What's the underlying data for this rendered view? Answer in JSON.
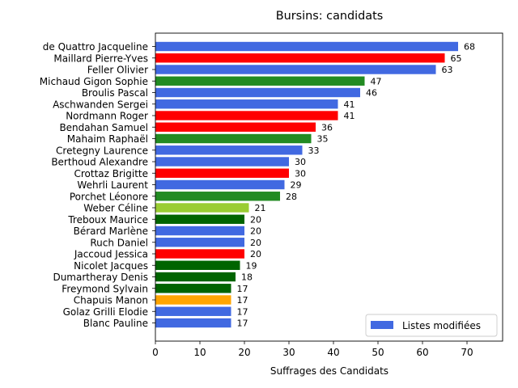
{
  "chart_data": {
    "type": "bar",
    "orientation": "horizontal",
    "title": "Bursins: candidats",
    "xlabel": "Suffrages des Candidats",
    "ylabel": "",
    "xlim": [
      0,
      78
    ],
    "xticks": [
      0,
      10,
      20,
      30,
      40,
      50,
      60,
      70
    ],
    "grid": false,
    "legend": {
      "placement": "bottom-right",
      "entries": [
        {
          "label": "Listes modifiées",
          "color": "#4169e1"
        }
      ]
    },
    "bars": [
      {
        "label": "de Quattro Jacqueline",
        "value": 68,
        "color": "#4169e1"
      },
      {
        "label": "Maillard Pierre-Yves",
        "value": 65,
        "color": "#ff0000"
      },
      {
        "label": "Feller Olivier",
        "value": 63,
        "color": "#4169e1"
      },
      {
        "label": "Michaud Gigon Sophie",
        "value": 47,
        "color": "#228b22"
      },
      {
        "label": "Broulis Pascal",
        "value": 46,
        "color": "#4169e1"
      },
      {
        "label": "Aschwanden Sergei",
        "value": 41,
        "color": "#4169e1"
      },
      {
        "label": "Nordmann Roger",
        "value": 41,
        "color": "#ff0000"
      },
      {
        "label": "Bendahan Samuel",
        "value": 36,
        "color": "#ff0000"
      },
      {
        "label": "Mahaim Raphaël",
        "value": 35,
        "color": "#228b22"
      },
      {
        "label": "Cretegny Laurence",
        "value": 33,
        "color": "#4169e1"
      },
      {
        "label": "Berthoud Alexandre",
        "value": 30,
        "color": "#4169e1"
      },
      {
        "label": "Crottaz Brigitte",
        "value": 30,
        "color": "#ff0000"
      },
      {
        "label": "Wehrli Laurent",
        "value": 29,
        "color": "#4169e1"
      },
      {
        "label": "Porchet Léonore",
        "value": 28,
        "color": "#228b22"
      },
      {
        "label": "Weber Céline",
        "value": 21,
        "color": "#9acd32"
      },
      {
        "label": "Treboux Maurice",
        "value": 20,
        "color": "#006400"
      },
      {
        "label": "Bérard Marlène",
        "value": 20,
        "color": "#4169e1"
      },
      {
        "label": "Ruch Daniel",
        "value": 20,
        "color": "#4169e1"
      },
      {
        "label": "Jaccoud Jessica",
        "value": 20,
        "color": "#ff0000"
      },
      {
        "label": "Nicolet Jacques",
        "value": 19,
        "color": "#006400"
      },
      {
        "label": "Dumartheray Denis",
        "value": 18,
        "color": "#006400"
      },
      {
        "label": "Freymond Sylvain",
        "value": 17,
        "color": "#006400"
      },
      {
        "label": "Chapuis Manon",
        "value": 17,
        "color": "#ffa500"
      },
      {
        "label": "Golaz Grilli Elodie",
        "value": 17,
        "color": "#4169e1"
      },
      {
        "label": "Blanc Pauline",
        "value": 17,
        "color": "#4169e1"
      }
    ]
  }
}
